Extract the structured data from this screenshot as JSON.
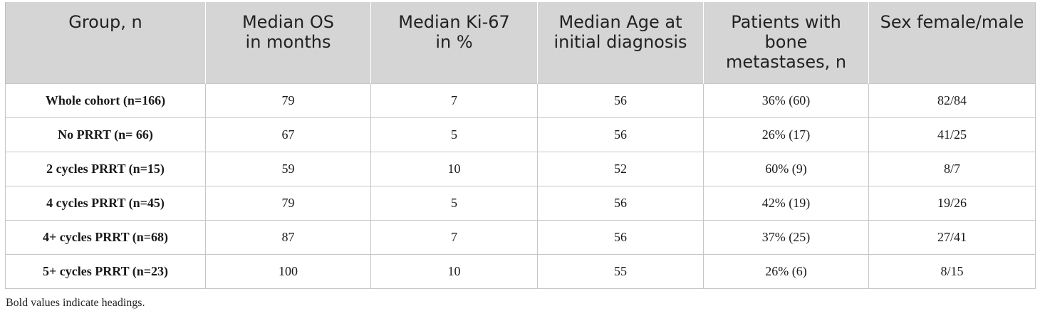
{
  "table": {
    "headers": [
      "Group, n",
      "Median OS\nin months",
      "Median Ki-67\nin %",
      "Median Age at\ninitial diagnosis",
      "Patients with\nbone\nmetastases, n",
      "Sex female/male"
    ],
    "rows": [
      [
        "Whole cohort (n=166)",
        "79",
        "7",
        "56",
        "36% (60)",
        "82/84"
      ],
      [
        "No PRRT (n= 66)",
        "67",
        "5",
        "56",
        "26% (17)",
        "41/25"
      ],
      [
        "2 cycles PRRT (n=15)",
        "59",
        "10",
        "52",
        "60% (9)",
        "8/7"
      ],
      [
        "4 cycles PRRT (n=45)",
        "79",
        "5",
        "56",
        "42% (19)",
        "19/26"
      ],
      [
        "4+ cycles PRRT (n=68)",
        "87",
        "7",
        "56",
        "37% (25)",
        "27/41"
      ],
      [
        "5+ cycles PRRT (n=23)",
        "100",
        "10",
        "55",
        "26% (6)",
        "8/15"
      ]
    ]
  },
  "footnote": "Bold values indicate headings.",
  "colors": {
    "header_background": "#d5d5d5",
    "grid_line": "#c6c6c6"
  }
}
